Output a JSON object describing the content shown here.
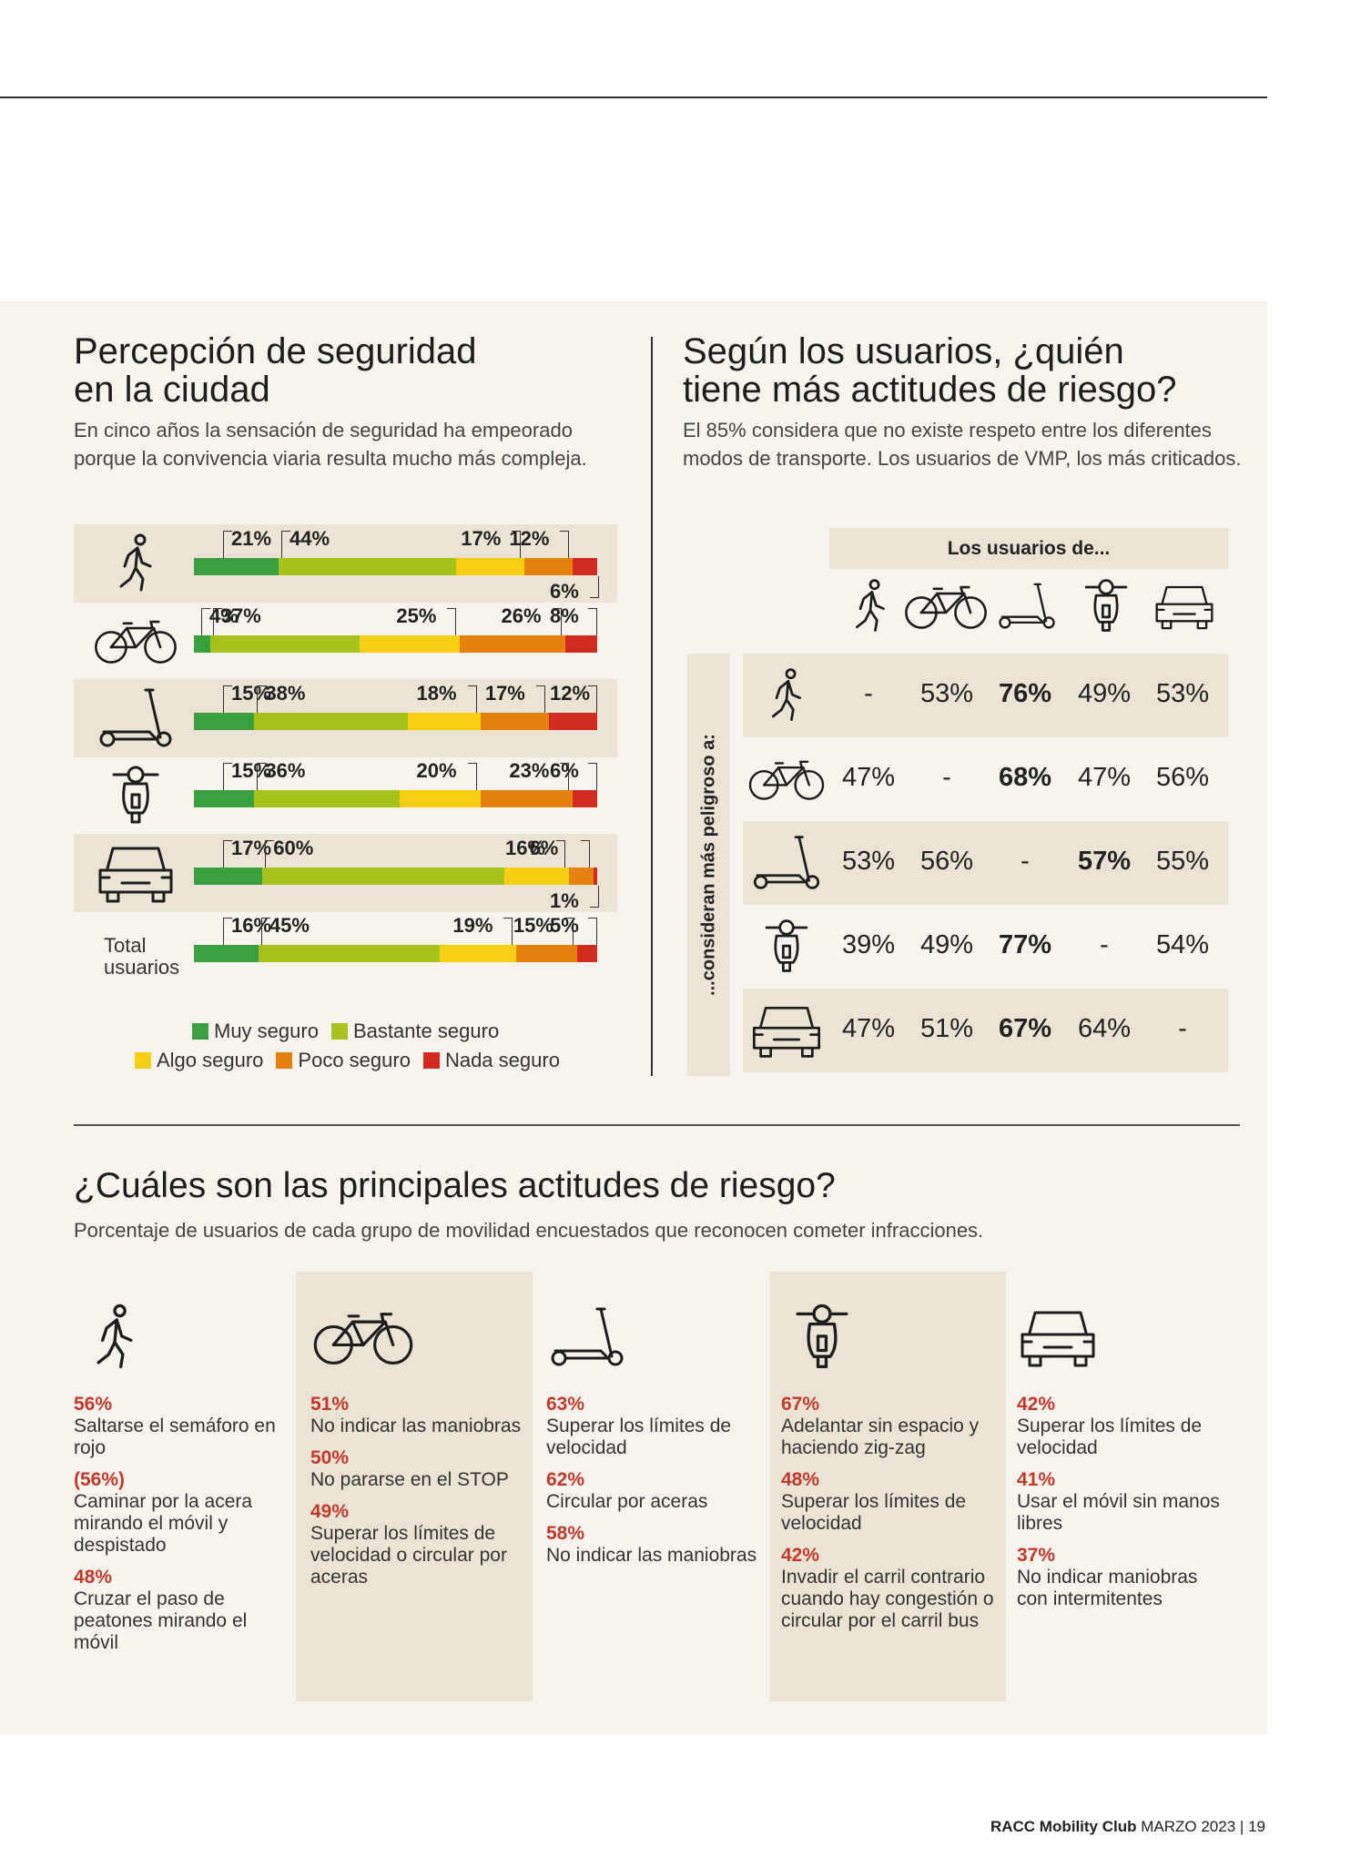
{
  "header": {
    "left_title": "Percepción de seguridad en la ciudad",
    "left_title_l1": "Percepción de seguridad",
    "left_title_l2": "en la ciudad",
    "left_sub_l1": "En cinco años la sensación de seguridad ha empeorado",
    "left_sub_l2": "porque la convivencia viaria resulta mucho más compleja.",
    "right_title_l1": "Según los usuarios, ¿quién",
    "right_title_l2": "tiene más actitudes de riesgo?",
    "right_sub_l1": "El 85% considera que no existe respeto entre los diferentes",
    "right_sub_l2": "modos de transporte. Los usuarios de VMP, los más criticados."
  },
  "colors": {
    "muy": "#3aa03f",
    "bastante": "#a8c21d",
    "algo": "#f7cf12",
    "poco": "#e5810f",
    "nada": "#d12a1f",
    "shade": "#ebe3d4",
    "red_text": "#c0392b"
  },
  "chart_data": [
    {
      "type": "bar",
      "stacked": true,
      "orientation": "horizontal",
      "categories": [
        "peaton",
        "bicicleta",
        "patinete",
        "moto",
        "coche",
        "Total usuarios"
      ],
      "category_icons": [
        "pedestrian-icon",
        "bicycle-icon",
        "scooter-icon",
        "motorbike-icon",
        "car-icon",
        ""
      ],
      "total_label_l1": "Total",
      "total_label_l2": "usuarios",
      "series": [
        {
          "name": "Muy seguro",
          "values": [
            21,
            4,
            15,
            15,
            17,
            16
          ]
        },
        {
          "name": "Bastante seguro",
          "values": [
            44,
            37,
            38,
            36,
            60,
            45
          ]
        },
        {
          "name": "Algo seguro",
          "values": [
            17,
            25,
            18,
            20,
            16,
            19
          ]
        },
        {
          "name": "Poco seguro",
          "values": [
            12,
            26,
            17,
            23,
            6,
            15
          ]
        },
        {
          "name": "Nada seguro",
          "values": [
            6,
            8,
            12,
            6,
            1,
            5
          ]
        }
      ],
      "legend": [
        "Muy seguro",
        "Bastante seguro",
        "Algo seguro",
        "Poco seguro",
        "Nada seguro"
      ],
      "legend_position": "bottom"
    },
    {
      "type": "table",
      "header": "Los usuarios de...",
      "side_label": "...consideran más peligroso a:",
      "column_icons": [
        "pedestrian-icon",
        "bicycle-icon",
        "scooter-icon",
        "motorbike-icon",
        "car-icon"
      ],
      "row_icons": [
        "pedestrian-icon",
        "bicycle-icon",
        "scooter-icon",
        "motorbike-icon",
        "car-icon"
      ],
      "rows": [
        [
          "-",
          "53%",
          "76%",
          "49%",
          "53%"
        ],
        [
          "47%",
          "-",
          "68%",
          "47%",
          "56%"
        ],
        [
          "53%",
          "56%",
          "-",
          "57%",
          "55%"
        ],
        [
          "39%",
          "49%",
          "77%",
          "-",
          "54%"
        ],
        [
          "47%",
          "51%",
          "67%",
          "64%",
          "-"
        ]
      ],
      "bold": [
        [
          0,
          2
        ],
        [
          1,
          2
        ],
        [
          2,
          3
        ],
        [
          3,
          2
        ],
        [
          4,
          2
        ]
      ]
    }
  ],
  "bottom": {
    "title": "¿Cuáles son las principales actitudes de riesgo?",
    "subtitle": "Porcentaje de usuarios de cada grupo de movilidad encuestados que reconocen cometer infracciones.",
    "columns": [
      {
        "icon": "pedestrian-icon",
        "items": [
          {
            "pct": "56%",
            "text": "Saltarse el semáforo en rojo"
          },
          {
            "pct": "(56%)",
            "text": "Caminar por la acera mirando el móvil y despistado"
          },
          {
            "pct": "48%",
            "text": "Cruzar el paso de peatones mirando el móvil"
          }
        ]
      },
      {
        "icon": "bicycle-icon",
        "items": [
          {
            "pct": "51%",
            "text": "No indicar las maniobras"
          },
          {
            "pct": "50%",
            "text": "No pararse en el STOP"
          },
          {
            "pct": "49%",
            "text": "Superar los límites de velocidad o circular por aceras"
          }
        ]
      },
      {
        "icon": "scooter-icon",
        "items": [
          {
            "pct": "63%",
            "text": "Superar los límites de velocidad"
          },
          {
            "pct": "62%",
            "text": "Circular por aceras"
          },
          {
            "pct": "58%",
            "text": "No indicar las maniobras"
          }
        ]
      },
      {
        "icon": "motorbike-icon",
        "items": [
          {
            "pct": "67%",
            "text": "Adelantar sin espacio y haciendo zig-zag"
          },
          {
            "pct": "48%",
            "text": "Superar los límites de velocidad"
          },
          {
            "pct": "42%",
            "text": "Invadir el carril contrario cuando hay congestión o circular por el carril bus"
          }
        ]
      },
      {
        "icon": "car-icon",
        "items": [
          {
            "pct": "42%",
            "text": "Superar los límites de velocidad"
          },
          {
            "pct": "41%",
            "text": "Usar el móvil sin manos libres"
          },
          {
            "pct": "37%",
            "text": "No indicar maniobras con intermitentes"
          }
        ]
      }
    ]
  },
  "footer": {
    "brand": "RACC Mobility Club",
    "issue": "MARZO 2023",
    "sep": "|",
    "page": "19"
  }
}
